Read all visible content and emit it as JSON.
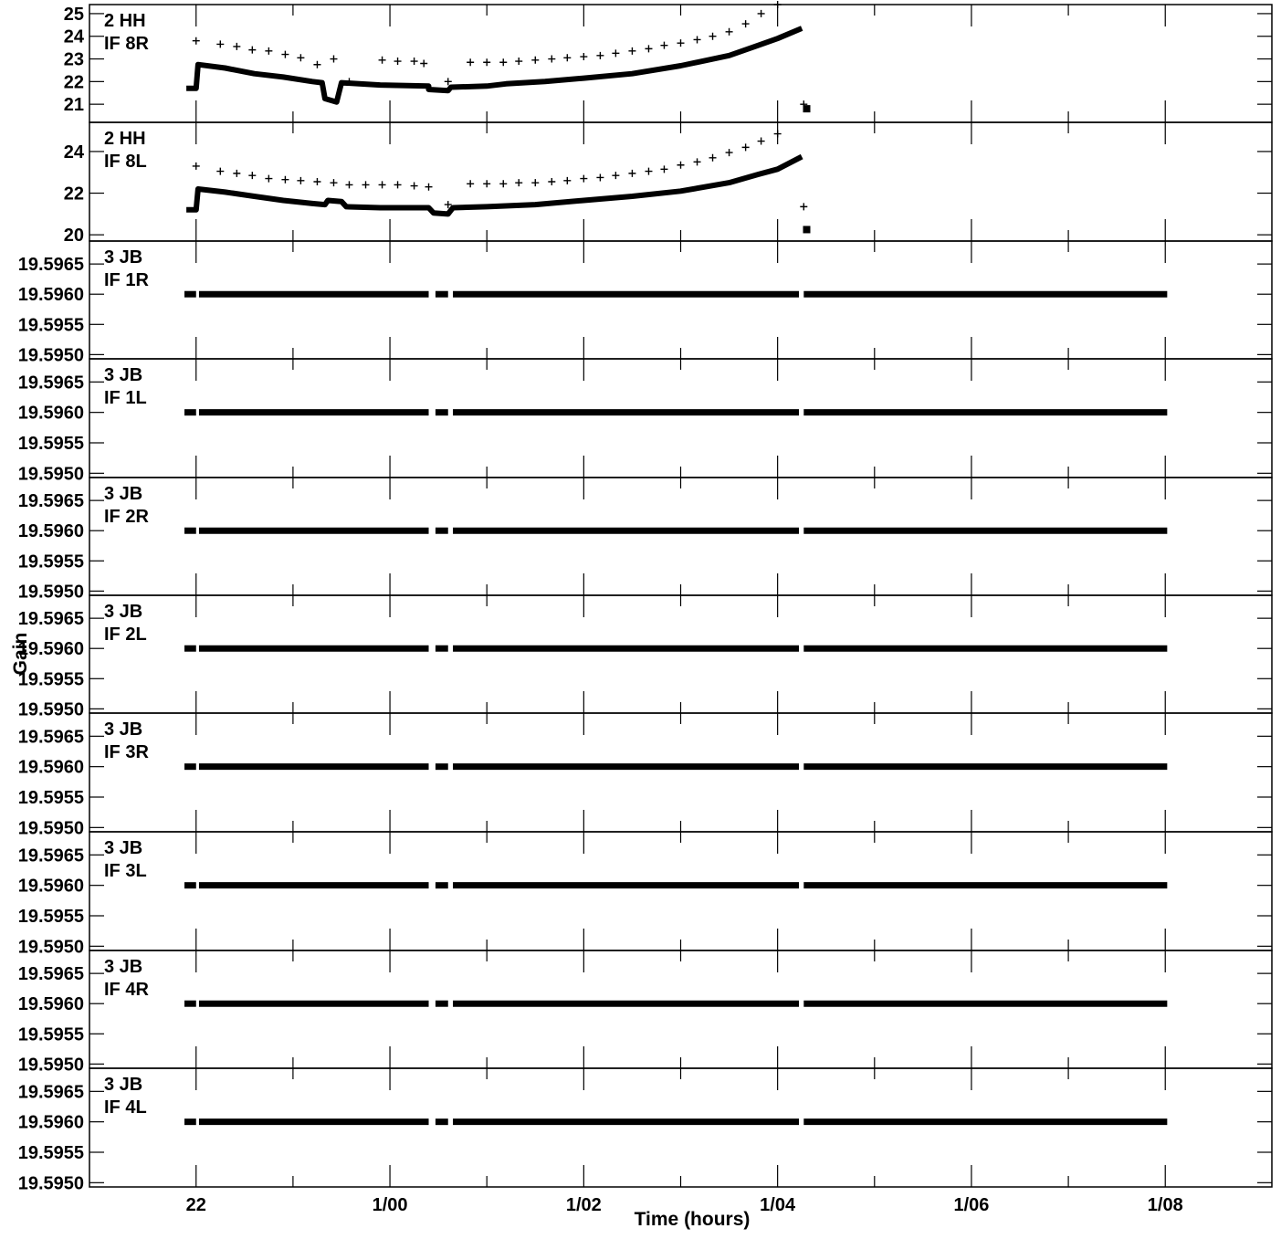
{
  "chart_data": {
    "type": "scatter",
    "xlabel": "Time (hours)",
    "ylabel": "Gain",
    "x_unit": "hours",
    "x_range_hours": [
      20.9,
      33.1
    ],
    "x_ticks": [
      {
        "value": 22,
        "label": "22"
      },
      {
        "value": 24,
        "label": "1/00"
      },
      {
        "value": 26,
        "label": "1/02"
      },
      {
        "value": 28,
        "label": "1/04"
      },
      {
        "value": 30,
        "label": "1/06"
      },
      {
        "value": 32,
        "label": "1/08"
      }
    ],
    "x_minor_ticks": [
      23,
      25,
      27,
      29,
      31
    ],
    "panels": [
      {
        "label_line1": "2 HH",
        "label_line2": "IF 8R",
        "ylim": [
          20.2,
          25.4
        ],
        "yticks": [
          {
            "value": 21,
            "label": "21"
          },
          {
            "value": 22,
            "label": "22"
          },
          {
            "value": 23,
            "label": "23"
          },
          {
            "value": 24,
            "label": "24"
          },
          {
            "value": 25,
            "label": "25"
          }
        ],
        "dense": [
          [
            21.9,
            21.7
          ],
          [
            22.0,
            21.7
          ],
          [
            22.02,
            22.75
          ],
          [
            22.3,
            22.6
          ],
          [
            22.6,
            22.35
          ],
          [
            22.9,
            22.2
          ],
          [
            23.2,
            22.0
          ],
          [
            23.3,
            21.95
          ],
          [
            23.33,
            21.25
          ],
          [
            23.45,
            21.1
          ],
          [
            23.5,
            21.95
          ],
          [
            23.9,
            21.85
          ],
          [
            24.4,
            21.8
          ],
          [
            24.4,
            21.65
          ],
          [
            24.6,
            21.6
          ],
          [
            24.63,
            21.75
          ],
          [
            25.0,
            21.8
          ],
          [
            25.2,
            21.9
          ],
          [
            25.6,
            22.0
          ],
          [
            26.0,
            22.15
          ],
          [
            26.5,
            22.35
          ],
          [
            27.0,
            22.7
          ],
          [
            27.5,
            23.15
          ],
          [
            27.8,
            23.6
          ],
          [
            28.0,
            23.9
          ],
          [
            28.25,
            24.35
          ]
        ],
        "dense_extra": [
          [
            28.3,
            20.8
          ]
        ],
        "sparse": [
          [
            22.0,
            23.8
          ],
          [
            22.25,
            23.65
          ],
          [
            22.42,
            23.55
          ],
          [
            22.58,
            23.4
          ],
          [
            22.75,
            23.35
          ],
          [
            22.92,
            23.2
          ],
          [
            23.08,
            23.05
          ],
          [
            23.25,
            22.75
          ],
          [
            23.42,
            23.0
          ],
          [
            23.58,
            22.0
          ],
          [
            23.92,
            22.95
          ],
          [
            24.08,
            22.9
          ],
          [
            24.25,
            22.9
          ],
          [
            24.35,
            22.8
          ],
          [
            24.6,
            22.0
          ],
          [
            24.83,
            22.85
          ],
          [
            25.0,
            22.85
          ],
          [
            25.17,
            22.85
          ],
          [
            25.33,
            22.9
          ],
          [
            25.5,
            22.95
          ],
          [
            25.67,
            23.0
          ],
          [
            25.83,
            23.05
          ],
          [
            26.0,
            23.1
          ],
          [
            26.17,
            23.15
          ],
          [
            26.33,
            23.25
          ],
          [
            26.5,
            23.35
          ],
          [
            26.67,
            23.45
          ],
          [
            26.83,
            23.6
          ],
          [
            27.0,
            23.7
          ],
          [
            27.17,
            23.85
          ],
          [
            27.33,
            24.0
          ],
          [
            27.5,
            24.2
          ],
          [
            27.67,
            24.55
          ],
          [
            27.83,
            25.0
          ],
          [
            28.0,
            25.4
          ],
          [
            28.27,
            21.0
          ]
        ]
      },
      {
        "label_line1": "2 HH",
        "label_line2": "IF 8L",
        "ylim": [
          19.7,
          25.4
        ],
        "yticks": [
          {
            "value": 20,
            "label": "20"
          },
          {
            "value": 22,
            "label": "22"
          },
          {
            "value": 24,
            "label": "24"
          }
        ],
        "dense": [
          [
            21.9,
            21.2
          ],
          [
            22.0,
            21.2
          ],
          [
            22.02,
            22.2
          ],
          [
            22.3,
            22.05
          ],
          [
            22.6,
            21.85
          ],
          [
            22.9,
            21.65
          ],
          [
            23.2,
            21.5
          ],
          [
            23.33,
            21.45
          ],
          [
            23.36,
            21.65
          ],
          [
            23.5,
            21.6
          ],
          [
            23.55,
            21.35
          ],
          [
            23.9,
            21.3
          ],
          [
            24.4,
            21.3
          ],
          [
            24.45,
            21.05
          ],
          [
            24.6,
            21.0
          ],
          [
            24.65,
            21.3
          ],
          [
            25.0,
            21.35
          ],
          [
            25.5,
            21.45
          ],
          [
            26.0,
            21.65
          ],
          [
            26.5,
            21.85
          ],
          [
            27.0,
            22.1
          ],
          [
            27.5,
            22.5
          ],
          [
            27.8,
            22.9
          ],
          [
            28.0,
            23.15
          ],
          [
            28.25,
            23.75
          ]
        ],
        "dense_extra": [
          [
            28.3,
            20.25
          ]
        ],
        "sparse": [
          [
            22.0,
            23.3
          ],
          [
            22.25,
            23.05
          ],
          [
            22.42,
            22.95
          ],
          [
            22.58,
            22.85
          ],
          [
            22.75,
            22.7
          ],
          [
            22.92,
            22.65
          ],
          [
            23.08,
            22.6
          ],
          [
            23.25,
            22.55
          ],
          [
            23.42,
            22.5
          ],
          [
            23.58,
            22.4
          ],
          [
            23.75,
            22.4
          ],
          [
            23.92,
            22.4
          ],
          [
            24.08,
            22.4
          ],
          [
            24.25,
            22.35
          ],
          [
            24.4,
            22.3
          ],
          [
            24.6,
            21.45
          ],
          [
            24.83,
            22.45
          ],
          [
            25.0,
            22.45
          ],
          [
            25.17,
            22.45
          ],
          [
            25.33,
            22.5
          ],
          [
            25.5,
            22.5
          ],
          [
            25.67,
            22.55
          ],
          [
            25.83,
            22.6
          ],
          [
            26.0,
            22.7
          ],
          [
            26.17,
            22.75
          ],
          [
            26.33,
            22.85
          ],
          [
            26.5,
            22.95
          ],
          [
            26.67,
            23.05
          ],
          [
            26.83,
            23.15
          ],
          [
            27.0,
            23.35
          ],
          [
            27.17,
            23.5
          ],
          [
            27.33,
            23.7
          ],
          [
            27.5,
            23.95
          ],
          [
            27.67,
            24.2
          ],
          [
            27.83,
            24.5
          ],
          [
            28.0,
            24.85
          ],
          [
            28.27,
            21.35
          ]
        ]
      },
      {
        "label_line1": "3 JB",
        "label_line2": "IF 1R",
        "ylim": [
          19.59493,
          19.59688
        ],
        "yticks": [
          {
            "value": 19.595,
            "label": "19.5950"
          },
          {
            "value": 19.5955,
            "label": "19.5955"
          },
          {
            "value": 19.596,
            "label": "19.5960"
          },
          {
            "value": 19.5965,
            "label": "19.5965"
          }
        ],
        "flat_value": 19.596
      },
      {
        "label_line1": "3 JB",
        "label_line2": "IF 1L",
        "ylim": [
          19.59493,
          19.59688
        ],
        "yticks": [
          {
            "value": 19.595,
            "label": "19.5950"
          },
          {
            "value": 19.5955,
            "label": "19.5955"
          },
          {
            "value": 19.596,
            "label": "19.5960"
          },
          {
            "value": 19.5965,
            "label": "19.5965"
          }
        ],
        "flat_value": 19.596
      },
      {
        "label_line1": "3 JB",
        "label_line2": "IF 2R",
        "ylim": [
          19.59493,
          19.59688
        ],
        "yticks": [
          {
            "value": 19.595,
            "label": "19.5950"
          },
          {
            "value": 19.5955,
            "label": "19.5955"
          },
          {
            "value": 19.596,
            "label": "19.5960"
          },
          {
            "value": 19.5965,
            "label": "19.5965"
          }
        ],
        "flat_value": 19.596
      },
      {
        "label_line1": "3 JB",
        "label_line2": "IF 2L",
        "ylim": [
          19.59493,
          19.59688
        ],
        "yticks": [
          {
            "value": 19.595,
            "label": "19.5950"
          },
          {
            "value": 19.5955,
            "label": "19.5955"
          },
          {
            "value": 19.596,
            "label": "19.5960"
          },
          {
            "value": 19.5965,
            "label": "19.5965"
          }
        ],
        "flat_value": 19.596
      },
      {
        "label_line1": "3 JB",
        "label_line2": "IF 3R",
        "ylim": [
          19.59493,
          19.59688
        ],
        "yticks": [
          {
            "value": 19.595,
            "label": "19.5950"
          },
          {
            "value": 19.5955,
            "label": "19.5955"
          },
          {
            "value": 19.596,
            "label": "19.5960"
          },
          {
            "value": 19.5965,
            "label": "19.5965"
          }
        ],
        "flat_value": 19.596
      },
      {
        "label_line1": "3 JB",
        "label_line2": "IF 3L",
        "ylim": [
          19.59493,
          19.59688
        ],
        "yticks": [
          {
            "value": 19.595,
            "label": "19.5950"
          },
          {
            "value": 19.5955,
            "label": "19.5955"
          },
          {
            "value": 19.596,
            "label": "19.5960"
          },
          {
            "value": 19.5965,
            "label": "19.5965"
          }
        ],
        "flat_value": 19.596
      },
      {
        "label_line1": "3 JB",
        "label_line2": "IF 4R",
        "ylim": [
          19.59493,
          19.59688
        ],
        "yticks": [
          {
            "value": 19.595,
            "label": "19.5950"
          },
          {
            "value": 19.5955,
            "label": "19.5955"
          },
          {
            "value": 19.596,
            "label": "19.5960"
          },
          {
            "value": 19.5965,
            "label": "19.5965"
          }
        ],
        "flat_value": 19.596
      },
      {
        "label_line1": "3 JB",
        "label_line2": "IF 4L",
        "ylim": [
          19.59493,
          19.59688
        ],
        "yticks": [
          {
            "value": 19.595,
            "label": "19.5950"
          },
          {
            "value": 19.5955,
            "label": "19.5955"
          },
          {
            "value": 19.596,
            "label": "19.5960"
          },
          {
            "value": 19.5965,
            "label": "19.5965"
          }
        ],
        "flat_value": 19.596
      }
    ],
    "flat_segments_hours": [
      [
        21.88,
        22.0
      ],
      [
        22.03,
        24.4
      ],
      [
        24.47,
        24.6
      ],
      [
        24.65,
        28.22
      ],
      [
        28.27,
        32.02
      ]
    ],
    "grid": false,
    "legend": "none",
    "color": "#000000"
  }
}
